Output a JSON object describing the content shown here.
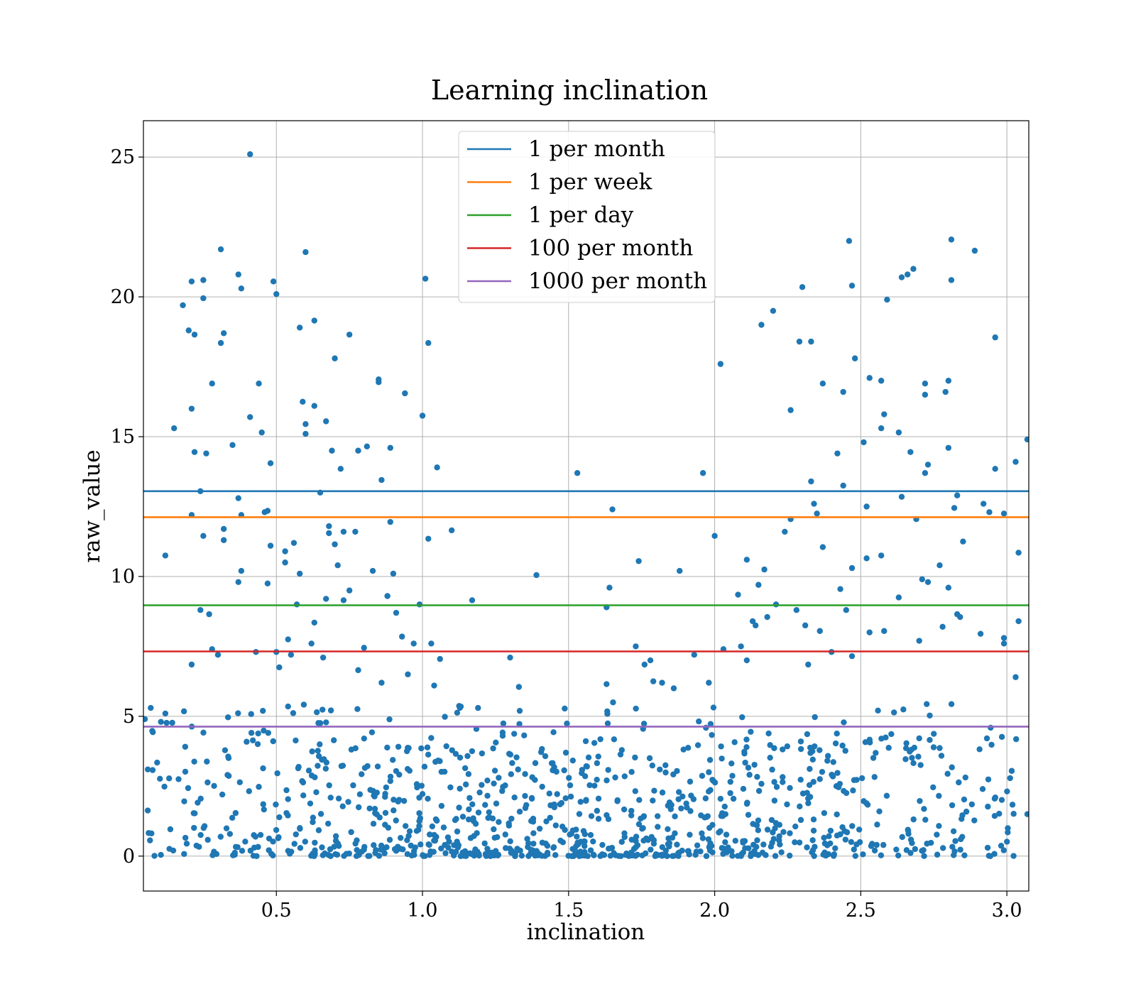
{
  "chart_data": {
    "type": "scatter",
    "title": "Learning inclination",
    "xlabel": "inclination",
    "ylabel": "raw_value",
    "xlim": [
      0.045,
      3.075
    ],
    "ylim": [
      -1.25,
      26.3
    ],
    "xticks": [
      0.5,
      1.0,
      1.5,
      2.0,
      2.5,
      3.0
    ],
    "xtick_labels": [
      "0.5",
      "1.0",
      "1.5",
      "2.0",
      "2.5",
      "3.0"
    ],
    "yticks": [
      0,
      5,
      10,
      15,
      20,
      25
    ],
    "ytick_labels": [
      "0",
      "5",
      "10",
      "15",
      "20",
      "25"
    ],
    "grid": true,
    "legend_position": "top-center",
    "scatter_color": "#1f77b4",
    "hlines": [
      {
        "name": "1 per month",
        "y": 13.05,
        "color": "#1f77b4"
      },
      {
        "name": "1 per week",
        "y": 12.12,
        "color": "#ff7f0e"
      },
      {
        "name": "1 per day",
        "y": 8.97,
        "color": "#2ca02c"
      },
      {
        "name": "100 per month",
        "y": 7.32,
        "color": "#d62728"
      },
      {
        "name": "1000 per month",
        "y": 4.63,
        "color": "#9467bd"
      }
    ],
    "points_approx_count": 1250,
    "points": [
      [
        0.05,
        4.9
      ],
      [
        0.06,
        3.1
      ],
      [
        0.07,
        5.3
      ],
      [
        0.12,
        10.75
      ],
      [
        0.12,
        5.1
      ],
      [
        0.15,
        15.3
      ],
      [
        0.18,
        19.7
      ],
      [
        0.2,
        18.8
      ],
      [
        0.21,
        16.0
      ],
      [
        0.21,
        12.2
      ],
      [
        0.21,
        6.85
      ],
      [
        0.21,
        20.55
      ],
      [
        0.22,
        18.65
      ],
      [
        0.22,
        14.45
      ],
      [
        0.24,
        8.8
      ],
      [
        0.24,
        13.05
      ],
      [
        0.25,
        11.45
      ],
      [
        0.25,
        19.95
      ],
      [
        0.25,
        20.6
      ],
      [
        0.26,
        14.4
      ],
      [
        0.27,
        8.65
      ],
      [
        0.28,
        16.9
      ],
      [
        0.28,
        7.4
      ],
      [
        0.3,
        7.2
      ],
      [
        0.31,
        21.7
      ],
      [
        0.31,
        18.35
      ],
      [
        0.32,
        18.7
      ],
      [
        0.32,
        11.7
      ],
      [
        0.32,
        11.3
      ],
      [
        0.35,
        14.7
      ],
      [
        0.37,
        20.8
      ],
      [
        0.37,
        12.8
      ],
      [
        0.38,
        20.3
      ],
      [
        0.38,
        12.2
      ],
      [
        0.38,
        10.2
      ],
      [
        0.37,
        9.8
      ],
      [
        0.41,
        25.1
      ],
      [
        0.41,
        15.7
      ],
      [
        0.43,
        7.3
      ],
      [
        0.44,
        16.9
      ],
      [
        0.45,
        15.15
      ],
      [
        0.46,
        12.3
      ],
      [
        0.47,
        12.35
      ],
      [
        0.47,
        9.75
      ],
      [
        0.48,
        14.05
      ],
      [
        0.48,
        11.1
      ],
      [
        0.49,
        20.55
      ],
      [
        0.5,
        20.1
      ],
      [
        0.5,
        7.3
      ],
      [
        0.51,
        6.75
      ],
      [
        0.53,
        10.9
      ],
      [
        0.53,
        10.5
      ],
      [
        0.54,
        7.75
      ],
      [
        0.54,
        5.35
      ],
      [
        0.55,
        7.2
      ],
      [
        0.56,
        11.2
      ],
      [
        0.57,
        9.0
      ],
      [
        0.58,
        18.9
      ],
      [
        0.58,
        10.1
      ],
      [
        0.59,
        16.25
      ],
      [
        0.6,
        21.6
      ],
      [
        0.6,
        15.45
      ],
      [
        0.6,
        15.1
      ],
      [
        0.62,
        7.6
      ],
      [
        0.63,
        19.15
      ],
      [
        0.63,
        16.1
      ],
      [
        0.63,
        8.35
      ],
      [
        0.65,
        13.0
      ],
      [
        0.66,
        7.1
      ],
      [
        0.67,
        15.55
      ],
      [
        0.67,
        9.2
      ],
      [
        0.68,
        11.55
      ],
      [
        0.68,
        11.8
      ],
      [
        0.69,
        14.5
      ],
      [
        0.7,
        17.8
      ],
      [
        0.7,
        11.15
      ],
      [
        0.71,
        10.4
      ],
      [
        0.72,
        13.85
      ],
      [
        0.73,
        11.6
      ],
      [
        0.73,
        9.15
      ],
      [
        0.75,
        18.65
      ],
      [
        0.75,
        9.5
      ],
      [
        0.77,
        11.6
      ],
      [
        0.78,
        14.5
      ],
      [
        0.78,
        6.65
      ],
      [
        0.8,
        7.45
      ],
      [
        0.81,
        14.65
      ],
      [
        0.83,
        10.2
      ],
      [
        0.85,
        16.95
      ],
      [
        0.85,
        17.05
      ],
      [
        0.86,
        13.45
      ],
      [
        0.86,
        6.2
      ],
      [
        0.88,
        9.3
      ],
      [
        0.89,
        14.6
      ],
      [
        0.89,
        11.95
      ],
      [
        0.9,
        10.1
      ],
      [
        0.91,
        8.7
      ],
      [
        0.93,
        7.85
      ],
      [
        0.94,
        16.55
      ],
      [
        0.95,
        6.5
      ],
      [
        0.97,
        7.6
      ],
      [
        0.99,
        9.0
      ],
      [
        1.0,
        15.75
      ],
      [
        1.01,
        20.65
      ],
      [
        1.02,
        11.35
      ],
      [
        1.02,
        18.35
      ],
      [
        1.03,
        7.6
      ],
      [
        1.04,
        6.1
      ],
      [
        1.05,
        13.9
      ],
      [
        1.06,
        7.05
      ],
      [
        1.1,
        11.65
      ],
      [
        1.17,
        9.15
      ],
      [
        1.3,
        7.1
      ],
      [
        1.33,
        6.05
      ],
      [
        1.39,
        10.05
      ],
      [
        1.53,
        13.7
      ],
      [
        1.63,
        6.15
      ],
      [
        1.63,
        8.9
      ],
      [
        1.64,
        9.6
      ],
      [
        1.65,
        12.4
      ],
      [
        1.73,
        7.5
      ],
      [
        1.74,
        10.55
      ],
      [
        1.76,
        6.85
      ],
      [
        1.78,
        7.0
      ],
      [
        1.79,
        6.25
      ],
      [
        1.82,
        6.2
      ],
      [
        1.86,
        6.0
      ],
      [
        1.88,
        10.2
      ],
      [
        1.93,
        7.2
      ],
      [
        1.96,
        13.7
      ],
      [
        1.98,
        6.2
      ],
      [
        2.0,
        11.45
      ],
      [
        2.02,
        17.6
      ],
      [
        2.03,
        7.4
      ],
      [
        2.08,
        9.35
      ],
      [
        2.09,
        7.5
      ],
      [
        2.11,
        10.6
      ],
      [
        2.11,
        7.0
      ],
      [
        2.13,
        8.4
      ],
      [
        2.14,
        8.25
      ],
      [
        2.15,
        9.7
      ],
      [
        2.16,
        19.0
      ],
      [
        2.17,
        10.25
      ],
      [
        2.18,
        8.55
      ],
      [
        2.2,
        19.5
      ],
      [
        2.21,
        9.0
      ],
      [
        2.24,
        11.6
      ],
      [
        2.26,
        15.95
      ],
      [
        2.26,
        12.05
      ],
      [
        2.28,
        8.8
      ],
      [
        2.29,
        18.4
      ],
      [
        2.3,
        20.35
      ],
      [
        2.31,
        8.25
      ],
      [
        2.32,
        6.85
      ],
      [
        2.33,
        18.4
      ],
      [
        2.33,
        13.4
      ],
      [
        2.34,
        12.6
      ],
      [
        2.35,
        12.25
      ],
      [
        2.36,
        8.05
      ],
      [
        2.37,
        16.9
      ],
      [
        2.37,
        11.05
      ],
      [
        2.4,
        7.3
      ],
      [
        2.42,
        14.4
      ],
      [
        2.43,
        9.55
      ],
      [
        2.44,
        16.6
      ],
      [
        2.44,
        13.25
      ],
      [
        2.45,
        8.8
      ],
      [
        2.46,
        22.0
      ],
      [
        2.47,
        20.4
      ],
      [
        2.47,
        10.3
      ],
      [
        2.47,
        7.15
      ],
      [
        2.48,
        17.8
      ],
      [
        2.51,
        14.8
      ],
      [
        2.52,
        12.5
      ],
      [
        2.52,
        10.65
      ],
      [
        2.53,
        17.1
      ],
      [
        2.53,
        8.0
      ],
      [
        2.57,
        17.0
      ],
      [
        2.57,
        10.75
      ],
      [
        2.57,
        15.3
      ],
      [
        2.58,
        15.8
      ],
      [
        2.58,
        8.05
      ],
      [
        2.59,
        19.9
      ],
      [
        2.63,
        9.25
      ],
      [
        2.63,
        15.15
      ],
      [
        2.64,
        12.85
      ],
      [
        2.64,
        20.7
      ],
      [
        2.66,
        20.8
      ],
      [
        2.67,
        14.45
      ],
      [
        2.68,
        21.0
      ],
      [
        2.69,
        12.05
      ],
      [
        2.7,
        7.7
      ],
      [
        2.71,
        9.9
      ],
      [
        2.72,
        16.9
      ],
      [
        2.72,
        16.5
      ],
      [
        2.72,
        13.7
      ],
      [
        2.73,
        14.0
      ],
      [
        2.73,
        9.8
      ],
      [
        2.77,
        10.4
      ],
      [
        2.78,
        8.2
      ],
      [
        2.79,
        16.6
      ],
      [
        2.8,
        17.0
      ],
      [
        2.8,
        14.6
      ],
      [
        2.8,
        9.6
      ],
      [
        2.81,
        22.05
      ],
      [
        2.81,
        20.6
      ],
      [
        2.82,
        12.45
      ],
      [
        2.83,
        12.9
      ],
      [
        2.83,
        8.65
      ],
      [
        2.84,
        8.55
      ],
      [
        2.85,
        11.25
      ],
      [
        2.89,
        21.65
      ],
      [
        2.91,
        7.95
      ],
      [
        2.92,
        12.6
      ],
      [
        2.94,
        12.3
      ],
      [
        2.96,
        18.55
      ],
      [
        2.96,
        13.85
      ],
      [
        2.99,
        12.25
      ],
      [
        2.99,
        7.8
      ],
      [
        2.99,
        7.6
      ],
      [
        3.03,
        14.1
      ],
      [
        3.03,
        6.4
      ],
      [
        3.04,
        10.85
      ],
      [
        3.04,
        8.4
      ],
      [
        3.07,
        14.9
      ],
      [
        3.07,
        1.5
      ]
    ]
  }
}
